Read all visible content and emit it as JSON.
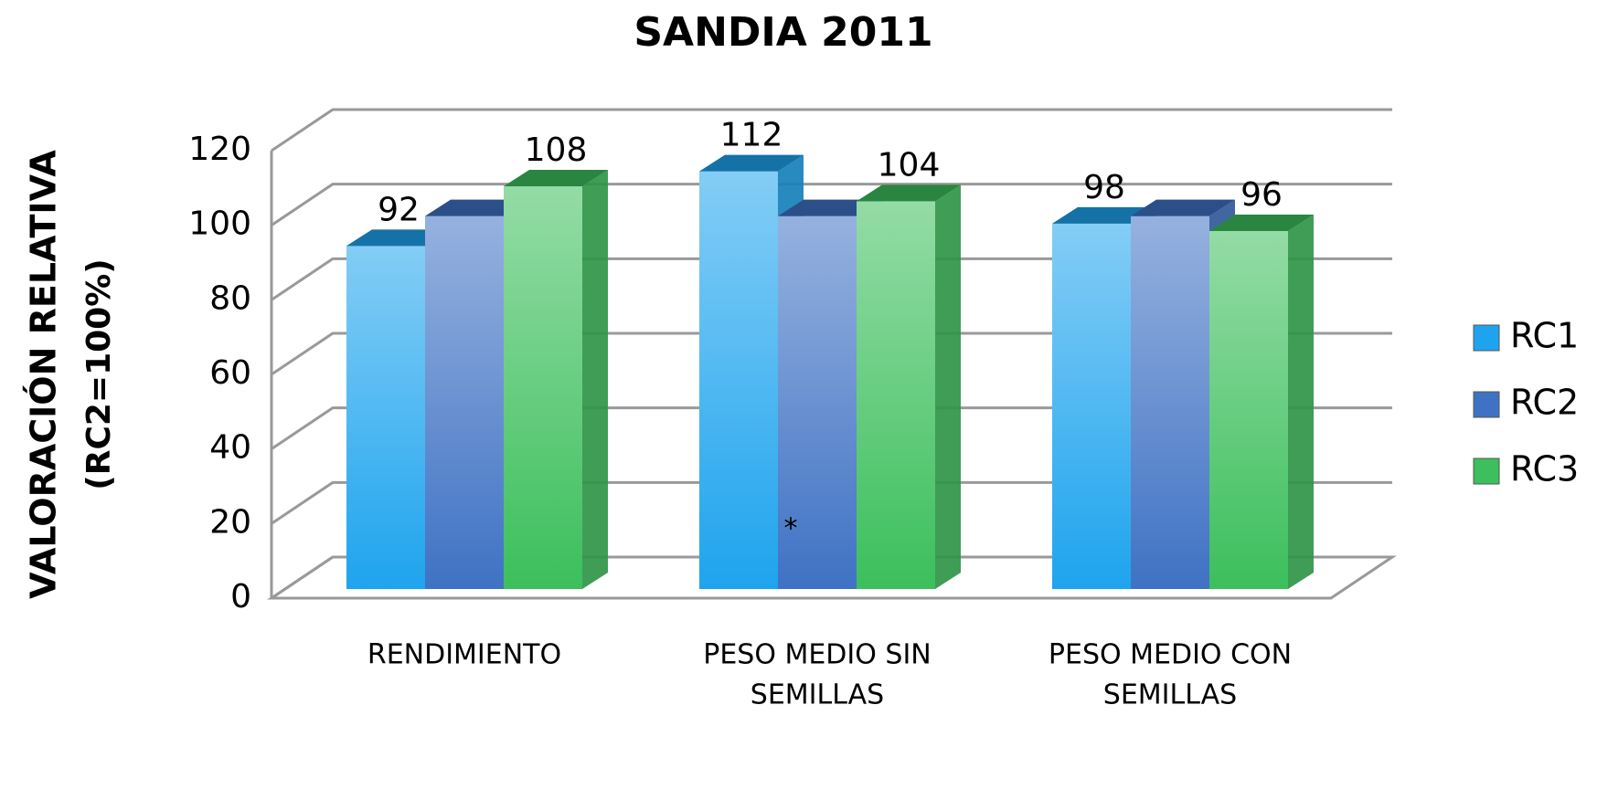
{
  "chart_data": {
    "type": "bar3d",
    "title": "SANDIA 2011",
    "y_label": [
      "VALORACIÓN RELATIVA",
      "(RC2=100%)"
    ],
    "categories": [
      [
        "RENDIMIENTO"
      ],
      [
        "PESO MEDIO SIN",
        "SEMILLAS"
      ],
      [
        "PESO MEDIO CON",
        "SEMILLAS"
      ]
    ],
    "series": [
      {
        "name": "RC1",
        "color": "#1ea4ee",
        "values": [
          92,
          112,
          98
        ],
        "show_labels": true
      },
      {
        "name": "RC2",
        "color": "#3f72c4",
        "values": [
          100,
          100,
          100
        ],
        "show_labels": false
      },
      {
        "name": "RC3",
        "color": "#3cbf5c",
        "values": [
          108,
          104,
          96
        ],
        "show_labels": true
      }
    ],
    "annotations": [
      {
        "text": "*",
        "category": 1,
        "series": 1
      }
    ],
    "ylim": [
      0,
      120
    ],
    "yticks": [
      0,
      20,
      40,
      60,
      80,
      100,
      120
    ],
    "grid": true,
    "legend": "right"
  }
}
